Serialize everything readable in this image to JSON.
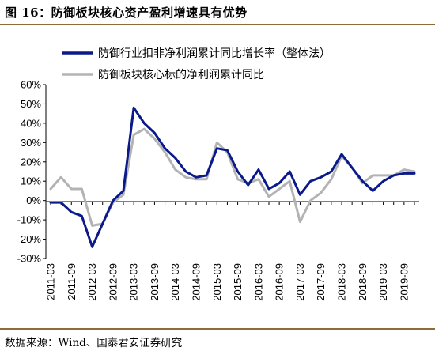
{
  "figure": {
    "caption": "图 16：防御板块核心资产盈利增速具有优势",
    "source": "数据来源：Wind、国泰君安证券研究"
  },
  "colors": {
    "series_1": "#0a1a8a",
    "series_2": "#b3b3b3",
    "axis": "#000000",
    "rule": "#8a6d3b"
  },
  "chart_data": {
    "type": "line",
    "x": [
      "2011-03",
      "2011-06",
      "2011-09",
      "2011-12",
      "2012-03",
      "2012-06",
      "2012-09",
      "2012-12",
      "2013-03",
      "2013-06",
      "2013-09",
      "2013-12",
      "2014-03",
      "2014-06",
      "2014-09",
      "2014-12",
      "2015-03",
      "2015-06",
      "2015-09",
      "2015-12",
      "2016-03",
      "2016-06",
      "2016-09",
      "2016-12",
      "2017-03",
      "2017-06",
      "2017-09",
      "2017-12",
      "2018-03",
      "2018-06",
      "2018-09",
      "2018-12",
      "2019-03",
      "2019-06",
      "2019-09",
      "2019-12"
    ],
    "x_tick_labels": [
      "2011-03",
      "2011-09",
      "2012-03",
      "2012-09",
      "2013-03",
      "2013-09",
      "2014-03",
      "2014-09",
      "2015-03",
      "2015-09",
      "2016-03",
      "2016-09",
      "2017-03",
      "2017-09",
      "2018-03",
      "2018-09",
      "2019-03",
      "2019-09"
    ],
    "y_tick_labels": [
      "60%",
      "50%",
      "40%",
      "30%",
      "20%",
      "10%",
      "0%",
      "-10%",
      "-20%",
      "-30%"
    ],
    "ylim": [
      -30,
      60
    ],
    "y_unit": "%",
    "grid": false,
    "legend_position": "top-left",
    "series": [
      {
        "name": "防御行业扣非净利润累计同比增长率（整体法）",
        "values": [
          -1,
          -1,
          -6,
          -8,
          -24,
          -12,
          0,
          5,
          48,
          40,
          35,
          27,
          22,
          15,
          12,
          13,
          27,
          26,
          15,
          8,
          16,
          6,
          9,
          15,
          3,
          10,
          12,
          15,
          24,
          17,
          10,
          5,
          10,
          13,
          14,
          14
        ]
      },
      {
        "name": "防御板块核心标的净利润累计同比",
        "values": [
          6,
          12,
          6,
          6,
          -13,
          -12,
          -1,
          3,
          34,
          37,
          32,
          25,
          16,
          12,
          11,
          11,
          30,
          25,
          11,
          9,
          11,
          2,
          6,
          10,
          -11,
          0,
          4,
          11,
          23,
          17,
          9,
          13,
          13,
          13,
          16,
          15
        ]
      }
    ]
  }
}
